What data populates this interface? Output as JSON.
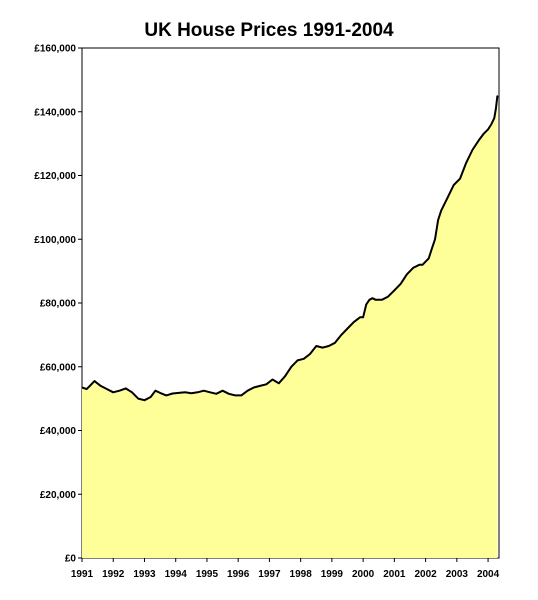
{
  "chart_data": {
    "type": "area",
    "title": "UK House Prices 1991-2004",
    "xlabel": "",
    "ylabel": "",
    "xlim": [
      1991,
      2004.35
    ],
    "ylim": [
      0,
      160000
    ],
    "grid": false,
    "legend": "none",
    "colors": {
      "fill": "#FFFF99",
      "line": "#000000",
      "background": "#FFFFFF"
    },
    "y_ticks": [
      0,
      20000,
      40000,
      60000,
      80000,
      100000,
      120000,
      140000,
      160000
    ],
    "y_tick_labels": [
      "£0",
      "£20,000",
      "£40,000",
      "£60,000",
      "£80,000",
      "£100,000",
      "£120,000",
      "£140,000",
      "£160,000"
    ],
    "x_ticks": [
      1991,
      1992,
      1993,
      1994,
      1995,
      1996,
      1997,
      1998,
      1999,
      2000,
      2001,
      2002,
      2003,
      2004
    ],
    "x_tick_labels": [
      "1991",
      "1992",
      "1993",
      "1994",
      "1995",
      "1996",
      "1997",
      "1998",
      "1999",
      "2000",
      "2001",
      "2002",
      "2003",
      "2004"
    ],
    "series": [
      {
        "x": [
          1991.0,
          1991.15,
          1991.25,
          1991.4,
          1991.6,
          1991.8,
          1992.0,
          1992.2,
          1992.4,
          1992.6,
          1992.8,
          1993.0,
          1993.2,
          1993.35,
          1993.5,
          1993.7,
          1993.9,
          1994.1,
          1994.3,
          1994.5,
          1994.7,
          1994.9,
          1995.1,
          1995.3,
          1995.5,
          1995.7,
          1995.9,
          1996.1,
          1996.3,
          1996.5,
          1996.7,
          1996.9,
          1997.1,
          1997.3,
          1997.5,
          1997.7,
          1997.9,
          1998.1,
          1998.3,
          1998.5,
          1998.7,
          1998.9,
          1999.1,
          1999.3,
          1999.5,
          1999.7,
          1999.9,
          2000.0,
          2000.1,
          2000.2,
          2000.3,
          2000.4,
          2000.6,
          2000.8,
          2001.0,
          2001.2,
          2001.4,
          2001.6,
          2001.8,
          2001.9,
          2002.0,
          2002.1,
          2002.2,
          2002.3,
          2002.4,
          2002.5,
          2002.7,
          2002.9,
          2003.1,
          2003.3,
          2003.5,
          2003.7,
          2003.85,
          2004.0,
          2004.1,
          2004.2,
          2004.25,
          2004.3
        ],
        "values": [
          53500,
          53000,
          54000,
          55500,
          54000,
          53000,
          52000,
          52500,
          53200,
          52000,
          50000,
          49500,
          50500,
          52500,
          51800,
          51000,
          51600,
          51800,
          52000,
          51700,
          52000,
          52500,
          52000,
          51500,
          52500,
          51500,
          51000,
          51000,
          52500,
          53500,
          54000,
          54500,
          56000,
          54800,
          57000,
          60000,
          62000,
          62500,
          64000,
          66500,
          66000,
          66500,
          67500,
          70000,
          72000,
          74000,
          75500,
          75500,
          79500,
          81000,
          81500,
          81000,
          81000,
          82000,
          84000,
          86000,
          89000,
          91000,
          92000,
          92000,
          93000,
          94000,
          97000,
          100000,
          106000,
          109000,
          113000,
          117000,
          119000,
          124000,
          128000,
          131000,
          133000,
          134500,
          136000,
          138000,
          141000,
          145000
        ]
      }
    ]
  }
}
